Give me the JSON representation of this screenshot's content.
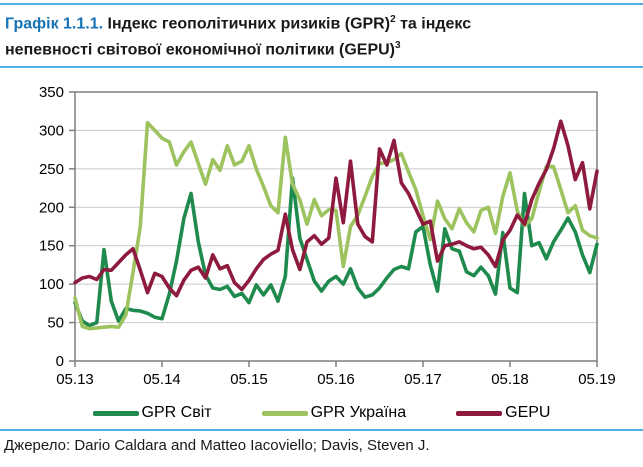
{
  "title": {
    "prefix": "Графік 1.1.1.",
    "line1_text": " Індекс геополітичних ризиків (GPR)",
    "line1_sup": "2",
    "line1_tail": " та індекс",
    "line2_text": "непевності світової економічної політики (GEPU)",
    "line2_sup": "3"
  },
  "source_text": "Джерело: Dario Caldara and Matteo Iacoviello; Davis, Steven J.",
  "colors": {
    "title_accent": "#1673b5",
    "rule_blue": "#4db3e6",
    "grid": "#c9c9c9",
    "plot_border": "#7f7f7f",
    "axis_text": "#000000"
  },
  "chart_data": {
    "type": "line",
    "x_start": "05.13",
    "x_end": "05.19",
    "x_frequency": "monthly",
    "x_tick_labels": [
      "05.13",
      "05.14",
      "05.15",
      "05.16",
      "05.17",
      "05.18",
      "05.19"
    ],
    "x_tick_month_indices": [
      0,
      12,
      24,
      36,
      48,
      60,
      72
    ],
    "y_tick_labels": [
      "0",
      "50",
      "100",
      "150",
      "200",
      "250",
      "300",
      "350"
    ],
    "ylim": [
      0,
      350
    ],
    "ytick_step": 50,
    "grid": "horizontal",
    "legend_position": "bottom",
    "series": [
      {
        "name": "GPR Світ",
        "color": "#1f8a4d",
        "values": [
          76,
          52,
          46,
          50,
          145,
          78,
          52,
          68,
          66,
          65,
          62,
          57,
          55,
          87,
          130,
          185,
          218,
          155,
          112,
          95,
          93,
          97,
          84,
          88,
          76,
          99,
          86,
          99,
          78,
          110,
          238,
          160,
          132,
          104,
          91,
          104,
          110,
          100,
          120,
          95,
          83,
          86,
          95,
          108,
          119,
          123,
          120,
          168,
          175,
          125,
          91,
          172,
          146,
          143,
          116,
          111,
          122,
          111,
          87,
          167,
          95,
          89,
          218,
          150,
          154,
          133,
          155,
          170,
          186,
          168,
          138,
          115,
          152
        ]
      },
      {
        "name": "GPR Україна",
        "color": "#9dc35f",
        "values": [
          82,
          45,
          42,
          43,
          44,
          45,
          44,
          60,
          115,
          175,
          310,
          300,
          290,
          285,
          255,
          272,
          285,
          257,
          230,
          262,
          248,
          280,
          255,
          260,
          280,
          250,
          227,
          202,
          193,
          291,
          230,
          210,
          178,
          210,
          189,
          197,
          196,
          123,
          175,
          190,
          214,
          240,
          257,
          258,
          262,
          270,
          246,
          223,
          189,
          158,
          208,
          185,
          172,
          198,
          180,
          168,
          196,
          200,
          166,
          214,
          245,
          195,
          176,
          185,
          220,
          253,
          253,
          223,
          193,
          202,
          170,
          163,
          160
        ]
      },
      {
        "name": "GEPU",
        "color": "#8e1a3d",
        "values": [
          102,
          108,
          110,
          106,
          119,
          118,
          128,
          138,
          146,
          118,
          89,
          114,
          110,
          95,
          85,
          105,
          118,
          122,
          108,
          138,
          120,
          124,
          102,
          93,
          105,
          120,
          132,
          139,
          144,
          191,
          145,
          119,
          155,
          163,
          152,
          160,
          238,
          180,
          260,
          178,
          162,
          155,
          276,
          255,
          287,
          232,
          218,
          198,
          178,
          182,
          130,
          150,
          152,
          155,
          150,
          146,
          148,
          138,
          123,
          157,
          170,
          190,
          178,
          210,
          231,
          249,
          276,
          312,
          280,
          236,
          258,
          198,
          247
        ]
      }
    ]
  }
}
